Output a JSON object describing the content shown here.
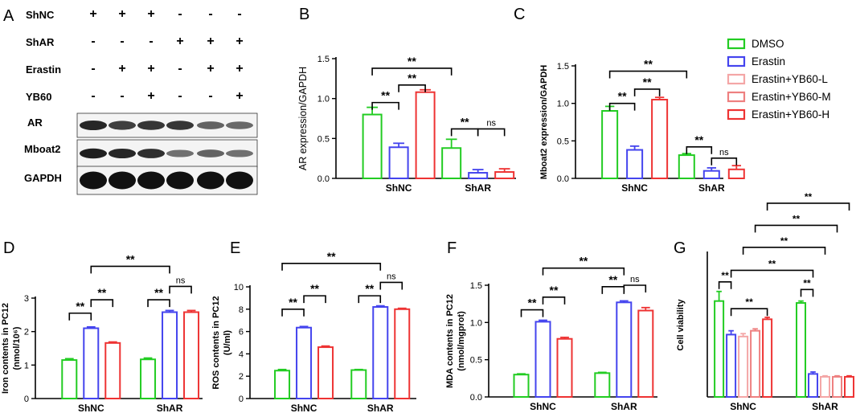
{
  "panel_letters": {
    "A": "A",
    "B": "B",
    "C": "C",
    "D": "D",
    "E": "E",
    "F": "F",
    "G": "G"
  },
  "blot": {
    "row_labels": [
      "ShNC",
      "ShAR",
      "Erastin",
      "YB60"
    ],
    "signs": [
      [
        "+",
        "+",
        "+",
        "-",
        "-",
        "-"
      ],
      [
        "-",
        "-",
        "-",
        "+",
        "+",
        "+"
      ],
      [
        "-",
        "+",
        "+",
        "-",
        "+",
        "+"
      ],
      [
        "-",
        "-",
        "+",
        "-",
        "-",
        "+"
      ]
    ],
    "band_labels": [
      "AR",
      "Mboat2",
      "GAPDH"
    ],
    "band_intensity": [
      [
        0.85,
        0.7,
        0.75,
        0.75,
        0.45,
        0.4
      ],
      [
        0.9,
        0.85,
        0.8,
        0.35,
        0.45,
        0.35
      ],
      [
        1,
        1,
        1,
        1,
        1,
        1
      ]
    ]
  },
  "legend": {
    "entries": [
      {
        "label": "DMSO",
        "color": "#22cc22",
        "fill": "none"
      },
      {
        "label": "Erastin",
        "color": "#4444ee",
        "fill": "none"
      },
      {
        "label": "Erastin+YB60-L",
        "color": "#f4a6a6",
        "fill": "none"
      },
      {
        "label": "Erastin+YB60-M",
        "color": "#ee8080",
        "fill": "none"
      },
      {
        "label": "Erastin+YB60-H",
        "color": "#ee3333",
        "fill": "none"
      }
    ]
  },
  "chart_data": [
    {
      "panel": "B",
      "type": "bar",
      "ylabel": "AR expression/GAPDH",
      "categories": [
        "ShNC",
        "ShAR"
      ],
      "ylim": [
        0,
        1.5
      ],
      "yticks": [
        0,
        0.5,
        1.0,
        1.5
      ],
      "ytick_labels": [
        "0.0",
        "0.5",
        "1.0",
        "1.5"
      ],
      "series": [
        {
          "name": "DMSO",
          "color": "#22cc22",
          "values": [
            0.8,
            0.38
          ],
          "err": [
            0.09,
            0.11
          ]
        },
        {
          "name": "Erastin",
          "color": "#4444ee",
          "values": [
            0.39,
            0.07
          ],
          "err": [
            0.05,
            0.04
          ]
        },
        {
          "name": "Erastin+YB60-H",
          "color": "#ee3333",
          "values": [
            1.08,
            0.08
          ],
          "err": [
            0.03,
            0.04
          ]
        }
      ],
      "annotations": [
        {
          "text": "**",
          "x1": [
            0,
            0
          ],
          "x2": [
            0,
            1
          ],
          "y": 0.95
        },
        {
          "text": "**",
          "x1": [
            0,
            1
          ],
          "x2": [
            0,
            2
          ],
          "y": 1.17
        },
        {
          "text": "**",
          "x1": [
            0,
            0
          ],
          "x2": [
            1,
            0
          ],
          "y": 1.38
        },
        {
          "text": "**",
          "x1": [
            1,
            0
          ],
          "x2": [
            1,
            1
          ],
          "y": 0.62
        },
        {
          "text": "ns",
          "x1": [
            1,
            1
          ],
          "x2": [
            1,
            2
          ],
          "y": 0.62
        }
      ]
    },
    {
      "panel": "C",
      "type": "bar",
      "ylabel": "Mboat2 expression/GAPDH",
      "categories": [
        "ShNC",
        "ShAR"
      ],
      "ylim": [
        0,
        1.5
      ],
      "yticks": [
        0,
        0.5,
        1.0,
        1.5
      ],
      "ytick_labels": [
        "0.0",
        "0.5",
        "1.0",
        "1.5"
      ],
      "series": [
        {
          "name": "DMSO",
          "color": "#22cc22",
          "values": [
            0.9,
            0.31
          ],
          "err": [
            0.06,
            0.02
          ]
        },
        {
          "name": "Erastin",
          "color": "#4444ee",
          "values": [
            0.38,
            0.1
          ],
          "err": [
            0.05,
            0.04
          ]
        },
        {
          "name": "Erastin+YB60-H",
          "color": "#ee3333",
          "values": [
            1.05,
            0.12
          ],
          "err": [
            0.03,
            0.05
          ]
        }
      ],
      "annotations": [
        {
          "text": "**",
          "x1": [
            0,
            0
          ],
          "x2": [
            0,
            1
          ],
          "y": 1.0
        },
        {
          "text": "**",
          "x1": [
            0,
            1
          ],
          "x2": [
            0,
            2
          ],
          "y": 1.19
        },
        {
          "text": "**",
          "x1": [
            0,
            0
          ],
          "x2": [
            1,
            0
          ],
          "y": 1.43
        },
        {
          "text": "**",
          "x1": [
            1,
            0
          ],
          "x2": [
            1,
            1
          ],
          "y": 0.42
        },
        {
          "text": "ns",
          "x1": [
            1,
            1
          ],
          "x2": [
            1,
            2
          ],
          "y": 0.27
        }
      ]
    },
    {
      "panel": "D",
      "type": "bar",
      "ylabel": "Iron contents in PC12 (nmol/10⁶)",
      "ylabel_lines": [
        "Iron contents in PC12",
        "(nmol/10⁶)"
      ],
      "categories": [
        "ShNC",
        "ShAR"
      ],
      "ylim": [
        0,
        3
      ],
      "yticks": [
        0,
        1,
        2,
        3
      ],
      "ytick_labels": [
        "0",
        "1",
        "2",
        "3"
      ],
      "series": [
        {
          "name": "DMSO",
          "color": "#22cc22",
          "values": [
            1.15,
            1.17
          ],
          "err": [
            0.04,
            0.04
          ]
        },
        {
          "name": "Erastin",
          "color": "#4444ee",
          "values": [
            2.1,
            2.58
          ],
          "err": [
            0.04,
            0.05
          ]
        },
        {
          "name": "Erastin+YB60-H",
          "color": "#ee3333",
          "values": [
            1.66,
            2.58
          ],
          "err": [
            0.03,
            0.05
          ]
        }
      ],
      "annotations": [
        {
          "text": "**",
          "x1": [
            0,
            0
          ],
          "x2": [
            0,
            1
          ],
          "y": 2.55
        },
        {
          "text": "**",
          "x1": [
            0,
            1
          ],
          "x2": [
            0,
            2
          ],
          "y": 2.95
        },
        {
          "text": "**",
          "x1": [
            0,
            1
          ],
          "x2": [
            1,
            1
          ],
          "y": 3.95
        },
        {
          "text": "**",
          "x1": [
            1,
            0
          ],
          "x2": [
            1,
            1
          ],
          "y": 2.95
        },
        {
          "text": "ns",
          "x1": [
            1,
            1
          ],
          "x2": [
            1,
            2
          ],
          "y": 3.35
        }
      ]
    },
    {
      "panel": "E",
      "type": "bar",
      "ylabel": "ROS contents in PC12 (U/ml)",
      "ylabel_lines": [
        "ROS contents in PC12",
        "(U/ml)"
      ],
      "categories": [
        "ShNC",
        "ShAR"
      ],
      "ylim": [
        0,
        10
      ],
      "yticks": [
        0,
        2,
        4,
        6,
        8,
        10
      ],
      "ytick_labels": [
        "0",
        "2",
        "4",
        "6",
        "8",
        "10"
      ],
      "series": [
        {
          "name": "DMSO",
          "color": "#22cc22",
          "values": [
            2.5,
            2.55
          ],
          "err": [
            0.1,
            0.05
          ]
        },
        {
          "name": "Erastin",
          "color": "#4444ee",
          "values": [
            6.35,
            8.2
          ],
          "err": [
            0.1,
            0.1
          ]
        },
        {
          "name": "Erastin+YB60-H",
          "color": "#ee3333",
          "values": [
            4.6,
            8.0
          ],
          "err": [
            0.1,
            0.08
          ]
        }
      ],
      "annotations": [
        {
          "text": "**",
          "x1": [
            0,
            0
          ],
          "x2": [
            0,
            1
          ],
          "y": 8.0
        },
        {
          "text": "**",
          "x1": [
            0,
            1
          ],
          "x2": [
            0,
            2
          ],
          "y": 9.2
        },
        {
          "text": "**",
          "x1": [
            0,
            0
          ],
          "x2": [
            1,
            1
          ],
          "y": 12.1
        },
        {
          "text": "**",
          "x1": [
            1,
            0
          ],
          "x2": [
            1,
            1
          ],
          "y": 9.2
        },
        {
          "text": "ns",
          "x1": [
            1,
            1
          ],
          "x2": [
            1,
            2
          ],
          "y": 10.4
        }
      ]
    },
    {
      "panel": "F",
      "type": "bar",
      "ylabel": "MDA contents in PC12 (nmol/mgprot)",
      "ylabel_lines": [
        "MDA contents in PC12",
        "(nmol/mgprot)"
      ],
      "categories": [
        "ShNC",
        "ShAR"
      ],
      "ylim": [
        0,
        1.5
      ],
      "yticks": [
        0,
        0.5,
        1.0,
        1.5
      ],
      "ytick_labels": [
        "0.0",
        "0.5",
        "1.0",
        "1.5"
      ],
      "series": [
        {
          "name": "DMSO",
          "color": "#22cc22",
          "values": [
            0.3,
            0.32
          ],
          "err": [
            0.01,
            0.01
          ]
        },
        {
          "name": "Erastin",
          "color": "#4444ee",
          "values": [
            1.01,
            1.27
          ],
          "err": [
            0.02,
            0.02
          ]
        },
        {
          "name": "Erastin+YB60-H",
          "color": "#ee3333",
          "values": [
            0.78,
            1.16
          ],
          "err": [
            0.02,
            0.04
          ]
        }
      ],
      "annotations": [
        {
          "text": "**",
          "x1": [
            0,
            0
          ],
          "x2": [
            0,
            1
          ],
          "y": 1.17
        },
        {
          "text": "**",
          "x1": [
            0,
            1
          ],
          "x2": [
            0,
            2
          ],
          "y": 1.34
        },
        {
          "text": "**",
          "x1": [
            0,
            1
          ],
          "x2": [
            1,
            1
          ],
          "y": 1.73
        },
        {
          "text": "**",
          "x1": [
            1,
            0
          ],
          "x2": [
            1,
            1
          ],
          "y": 1.48
        },
        {
          "text": "ns",
          "x1": [
            1,
            1
          ],
          "x2": [
            1,
            2
          ],
          "y": 1.5
        }
      ]
    },
    {
      "panel": "G",
      "type": "bar",
      "ylabel": "Cell viability",
      "categories": [
        "ShNC",
        "ShAR"
      ],
      "ylim": [
        0,
        1.5
      ],
      "yticks": [],
      "ytick_labels": [],
      "series": [
        {
          "name": "DMSO",
          "color": "#22cc22",
          "values": [
            1.0,
            0.98
          ],
          "err": [
            0.1,
            0.02
          ]
        },
        {
          "name": "Erastin",
          "color": "#4444ee",
          "values": [
            0.65,
            0.24
          ],
          "err": [
            0.04,
            0.02
          ]
        },
        {
          "name": "Erastin+YB60-L",
          "color": "#f4a6a6",
          "values": [
            0.63,
            0.21
          ],
          "err": [
            0.03,
            0.01
          ]
        },
        {
          "name": "Erastin+YB60-M",
          "color": "#ee8080",
          "values": [
            0.69,
            0.21
          ],
          "err": [
            0.02,
            0.01
          ]
        },
        {
          "name": "Erastin+YB60-H",
          "color": "#ee3333",
          "values": [
            0.81,
            0.21
          ],
          "err": [
            0.02,
            0.01
          ]
        }
      ],
      "annotations": [
        {
          "text": "**",
          "x1": [
            0,
            0
          ],
          "x2": [
            0,
            1
          ],
          "y": 1.2
        },
        {
          "text": "**",
          "x1": [
            0,
            1
          ],
          "x2": [
            0,
            4
          ],
          "y": 0.92
        },
        {
          "text": "**",
          "x1": [
            0,
            1
          ],
          "x2": [
            1,
            1
          ],
          "y": 1.32
        },
        {
          "text": "**",
          "x1": [
            0,
            2
          ],
          "x2": [
            1,
            2
          ],
          "y": 1.56
        },
        {
          "text": "**",
          "x1": [
            0,
            3
          ],
          "x2": [
            1,
            3
          ],
          "y": 1.79
        },
        {
          "text": "**",
          "x1": [
            0,
            4
          ],
          "x2": [
            1,
            4
          ],
          "y": 2.02
        },
        {
          "text": "**",
          "x1": [
            1,
            0
          ],
          "x2": [
            1,
            1
          ],
          "y": 1.12
        }
      ]
    }
  ]
}
